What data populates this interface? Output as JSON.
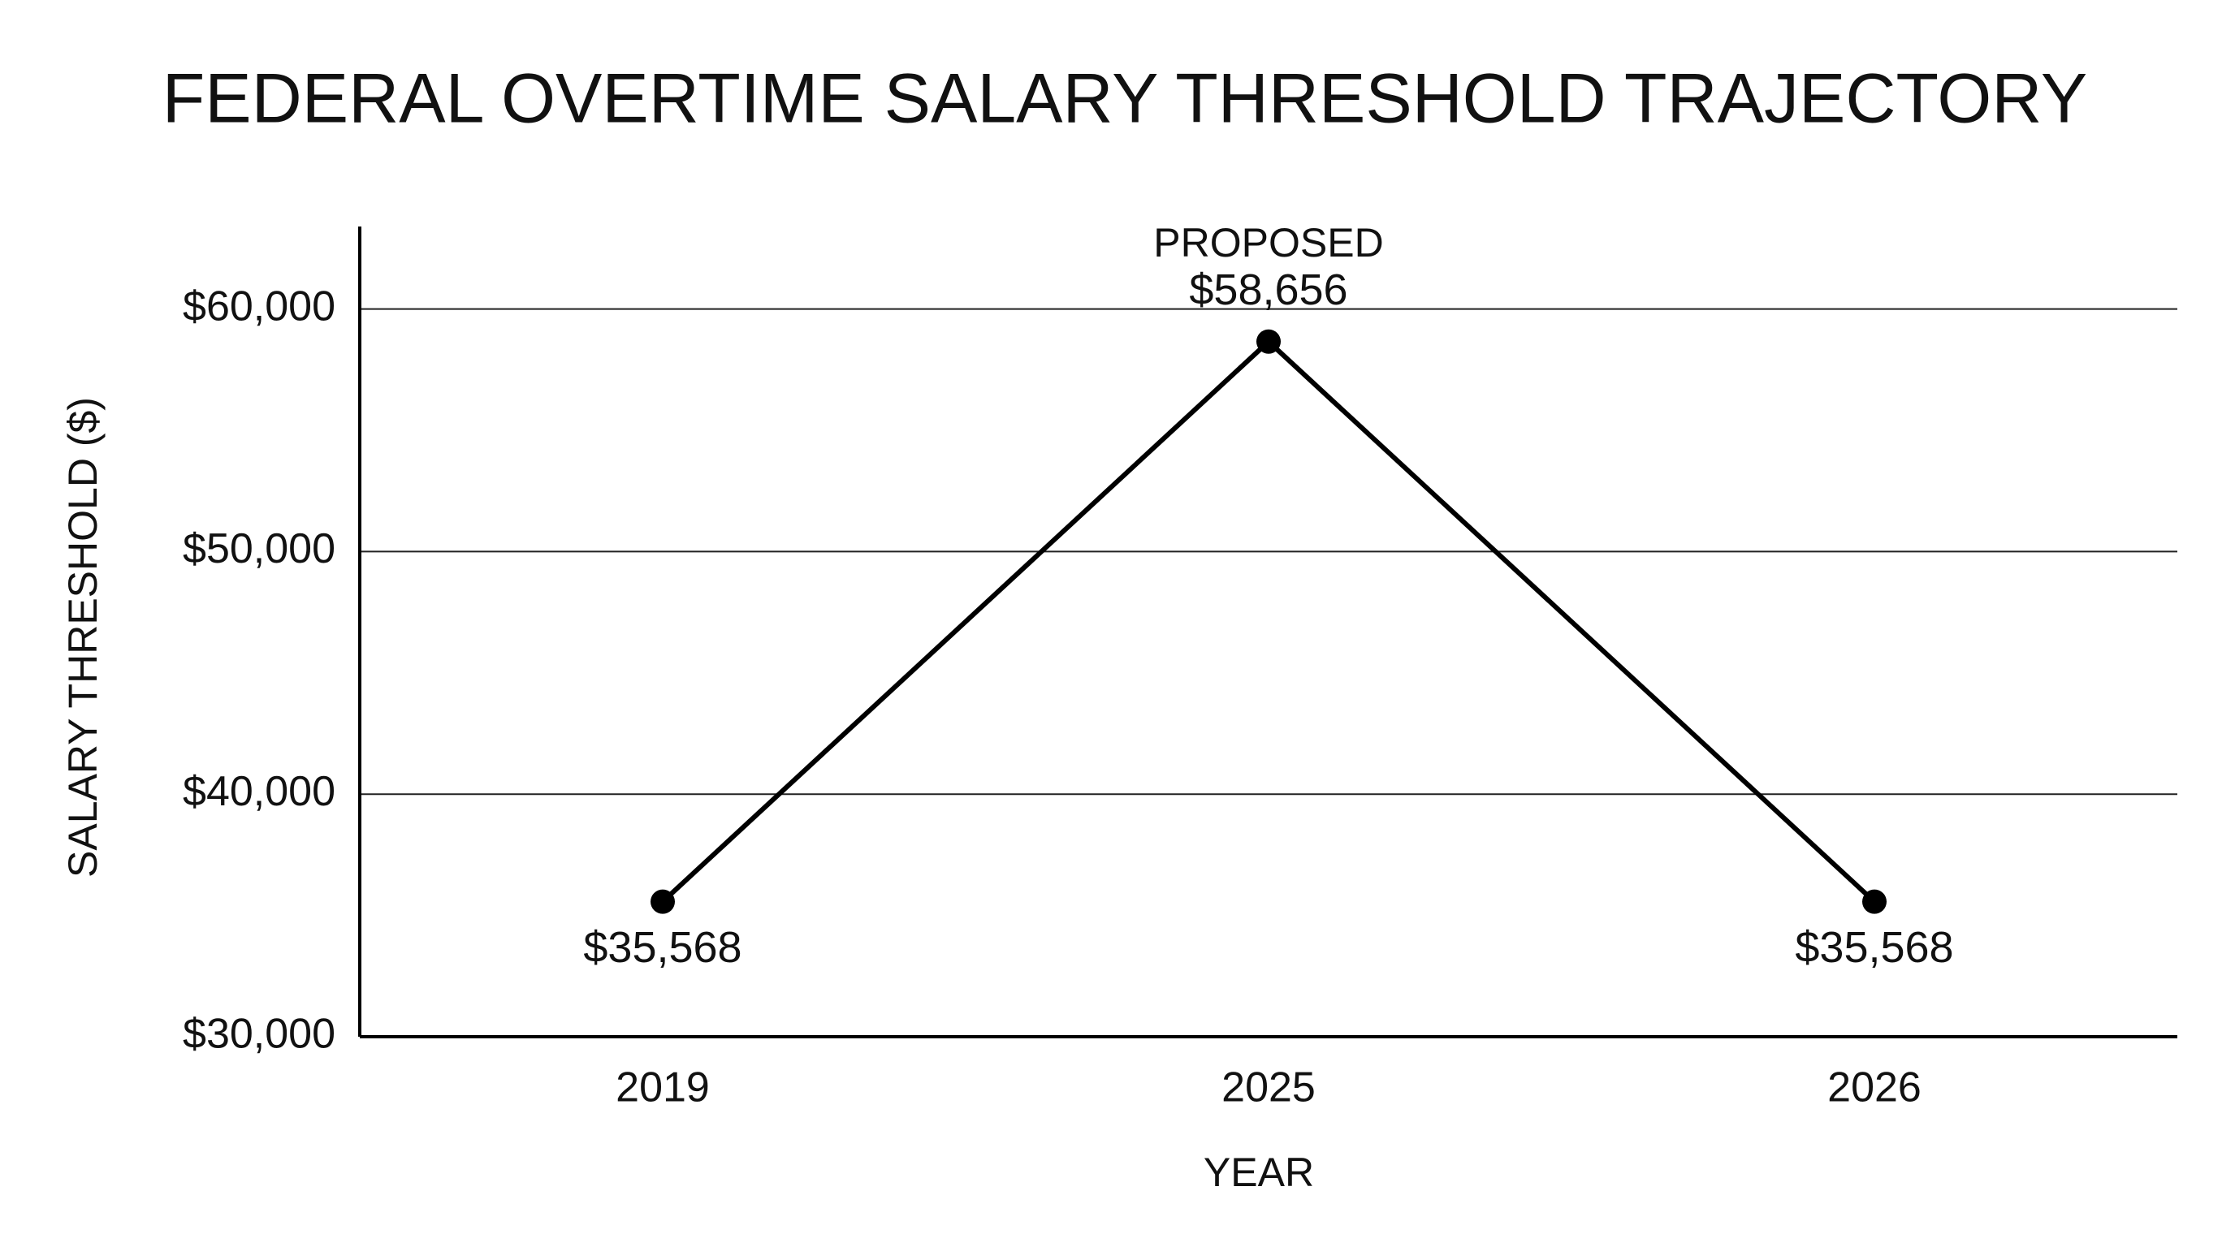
{
  "chart_data": {
    "type": "line",
    "title": "FEDERAL OVERTIME SALARY THRESHOLD TRAJECTORY",
    "x_label": "YEAR",
    "y_label": "SALARY THRESHOLD ($)",
    "categories": [
      "2019",
      "2025",
      "2026"
    ],
    "values": [
      35568,
      58656,
      35568
    ],
    "value_labels": [
      "$35,568",
      "$58,656",
      "$35,568"
    ],
    "annotations": [
      {
        "x": "2025",
        "text": "PROPOSED"
      }
    ],
    "color": "#000000",
    "ylim": [
      30000,
      63400
    ],
    "yticks": [
      {
        "value": 30000,
        "label": "$30,000"
      },
      {
        "value": 40000,
        "label": "$40,000"
      },
      {
        "value": 50000,
        "label": "$50,000"
      },
      {
        "value": 60000,
        "label": "$60,000"
      }
    ],
    "grid": true
  }
}
